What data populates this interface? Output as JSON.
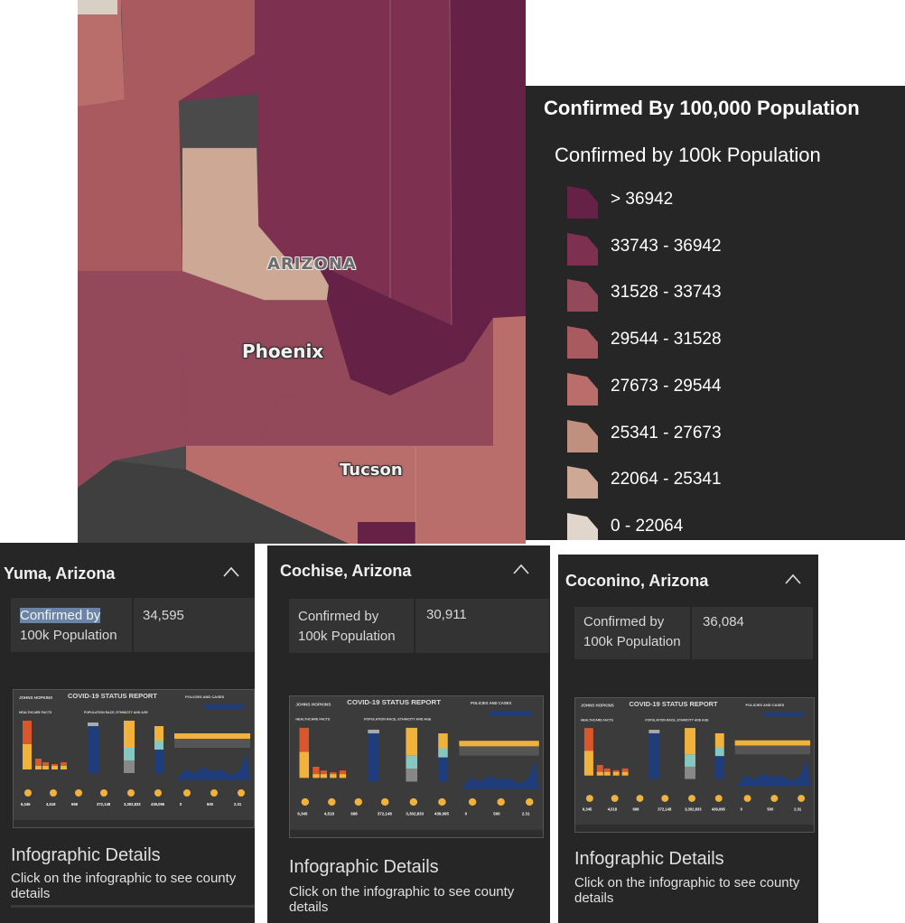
{
  "map": {
    "city_labels": [
      "Phoenix",
      "Tucson"
    ],
    "state_label": "ARIZONA"
  },
  "legend": {
    "title": "Confirmed By 100,000 Population",
    "subtitle": "Confirmed by 100k Population",
    "items": [
      {
        "label": "> 36942",
        "color": "#652146"
      },
      {
        "label": "33743 - 36942",
        "color": "#7d3050"
      },
      {
        "label": "31528 - 33743",
        "color": "#94495a"
      },
      {
        "label": "29544 - 31528",
        "color": "#a85a5e"
      },
      {
        "label": "27673 - 29544",
        "color": "#b96e6b"
      },
      {
        "label": "25341 - 27673",
        "color": "#c0907e"
      },
      {
        "label": "22064 - 25341",
        "color": "#cda894"
      },
      {
        "label": "0 - 22064",
        "color": "#e0d6cb"
      }
    ]
  },
  "cards": [
    {
      "title": "Yuma, Arizona",
      "field_label": "Confirmed by 100k Population",
      "field_label_line1": "Confirmed by",
      "field_label_line2": "100k Population",
      "field_value": "34,595",
      "details_title": "Infographic Details",
      "details_text": "Click on the infographic to see county details"
    },
    {
      "title": "Cochise, Arizona",
      "field_label": "Confirmed by 100k Population",
      "field_label_line1": "Confirmed by",
      "field_label_line2": "100k Population",
      "field_value": "30,911",
      "details_title": "Infographic Details",
      "details_text": "Click on the infographic to see county details"
    },
    {
      "title": "Coconino, Arizona",
      "field_label": "Confirmed by 100k Population",
      "field_label_line1": "Confirmed by",
      "field_label_line2": "100k Population",
      "field_value": "36,084",
      "details_title": "Infographic Details",
      "details_text": "Click on the infographic to see county details"
    }
  ],
  "infographic": {
    "org": "JOHNS HOPKINS",
    "title": "COVID-19 STATUS REPORT",
    "policies": "POLICIES AND CASES",
    "healthcare": "HEALTHCARE FACTS",
    "population": "POPULATION RACE, ETHNICITY AND AGE",
    "stats": [
      "6,345",
      "4,518",
      "698",
      "372,148",
      "3,302,833",
      "439,095",
      "0",
      "500",
      "2.31"
    ]
  }
}
